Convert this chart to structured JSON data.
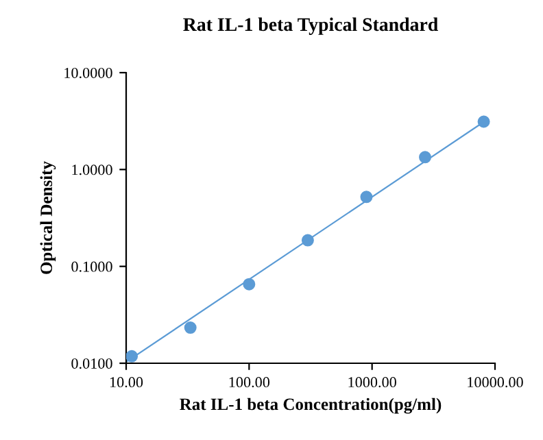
{
  "chart_data": {
    "type": "scatter",
    "title": "Rat IL-1 beta Typical Standard",
    "xlabel": "Rat IL-1 beta Concentration(pg/ml)",
    "ylabel": "Optical Density",
    "log": "xy",
    "grid": false,
    "legend": false,
    "xlim": [
      10,
      10000
    ],
    "ylim": [
      0.01,
      10
    ],
    "xticks": [
      {
        "value": 10,
        "label": "10.00"
      },
      {
        "value": 100,
        "label": "100.00"
      },
      {
        "value": 1000,
        "label": "1000.00"
      },
      {
        "value": 10000,
        "label": "10000.00"
      }
    ],
    "yticks": [
      {
        "value": 0.01,
        "label": "0.0100"
      },
      {
        "value": 0.1,
        "label": "0.1000"
      },
      {
        "value": 1,
        "label": "1.0000"
      },
      {
        "value": 10,
        "label": "10.0000"
      }
    ],
    "series": [
      {
        "marker": "circle",
        "color": "#5b9bd5",
        "x": [
          11.1,
          33.3,
          100,
          300,
          900,
          2700,
          8100
        ],
        "values": [
          0.0118,
          0.0233,
          0.0655,
          0.186,
          0.521,
          1.34,
          3.12
        ]
      },
      {
        "type": "line",
        "color": "#5b9bd5",
        "x": [
          10,
          8100
        ],
        "values": [
          0.0103,
          3.1
        ]
      }
    ]
  }
}
